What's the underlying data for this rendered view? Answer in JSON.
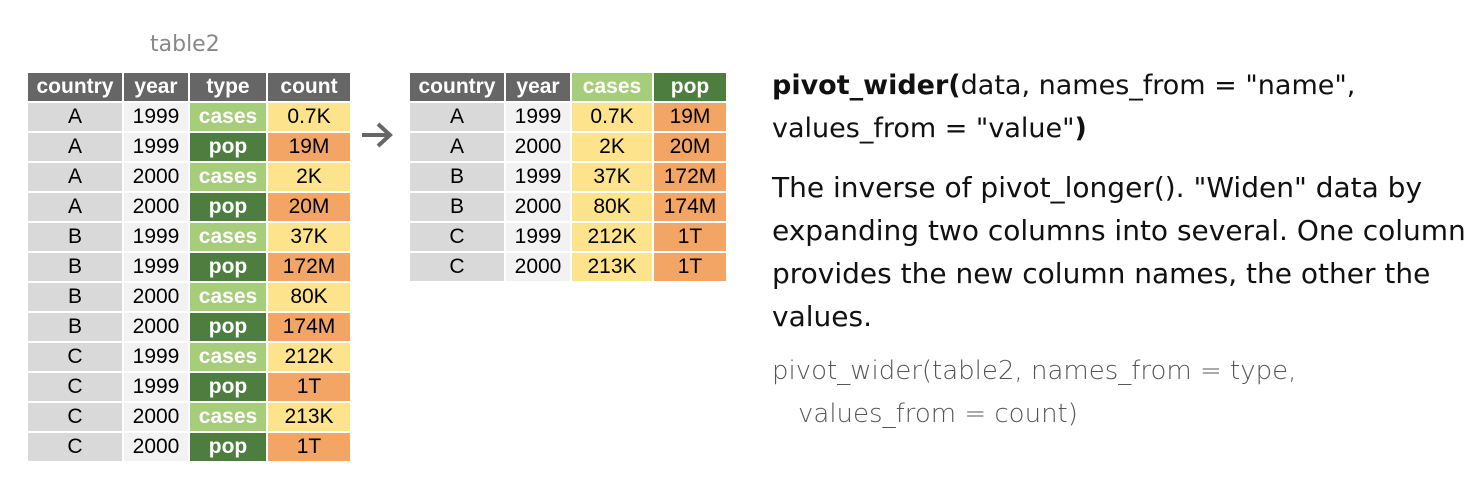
{
  "caption": "table2",
  "left_table": {
    "headers": [
      "country",
      "year",
      "type",
      "count"
    ],
    "rows": [
      [
        "A",
        "1999",
        "cases",
        "0.7K"
      ],
      [
        "A",
        "1999",
        "pop",
        "19M"
      ],
      [
        "A",
        "2000",
        "cases",
        "2K"
      ],
      [
        "A",
        "2000",
        "pop",
        "20M"
      ],
      [
        "B",
        "1999",
        "cases",
        "37K"
      ],
      [
        "B",
        "1999",
        "pop",
        "172M"
      ],
      [
        "B",
        "2000",
        "cases",
        "80K"
      ],
      [
        "B",
        "2000",
        "pop",
        "174M"
      ],
      [
        "C",
        "1999",
        "cases",
        "212K"
      ],
      [
        "C",
        "1999",
        "pop",
        "1T"
      ],
      [
        "C",
        "2000",
        "cases",
        "213K"
      ],
      [
        "C",
        "2000",
        "pop",
        "1T"
      ]
    ]
  },
  "right_table": {
    "headers": [
      "country",
      "year",
      "cases",
      "pop"
    ],
    "rows": [
      [
        "A",
        "1999",
        "0.7K",
        "19M"
      ],
      [
        "A",
        "2000",
        "2K",
        "20M"
      ],
      [
        "B",
        "1999",
        "37K",
        "172M"
      ],
      [
        "B",
        "2000",
        "80K",
        "174M"
      ],
      [
        "C",
        "1999",
        "212K",
        "1T"
      ],
      [
        "C",
        "2000",
        "213K",
        "1T"
      ]
    ]
  },
  "signature": {
    "fn": "pivot_wider(",
    "args_line1": "data, names_from = \"name\",",
    "args_line2": "values_from = \"value\"",
    "close": ")"
  },
  "description": "The inverse of pivot_longer(). \"Widen\" data by expanding two columns into several. One column provides the new column names, the other the values.",
  "example": {
    "line1": "pivot_wider(table2, names_from = type,",
    "line2": "values_from = count)"
  },
  "colors": {
    "header": "#666666",
    "country": "#d9d9d9",
    "year": "#f2f2f2",
    "cases": "#a6cd7a",
    "pop": "#4d7d3f",
    "yellow": "#fce38c",
    "orange": "#f2a564",
    "arrow": "#666666"
  },
  "icons": {
    "arrow": "right-arrow-icon"
  }
}
